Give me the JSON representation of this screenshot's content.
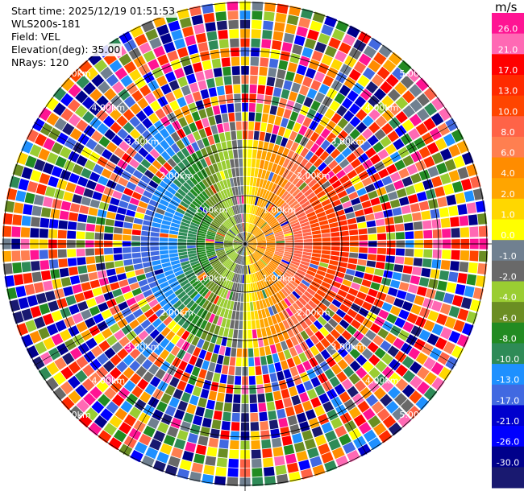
{
  "info": {
    "start_time": "Start time: 2025/12/19 01:51:53",
    "instrument": "WLS200s-181",
    "field": "Field: VEL",
    "elevation": "Elevation(deg): 35.00",
    "nrays": "NRays: 120"
  },
  "chart_data": {
    "type": "heatmap",
    "subtype": "polar-ppi",
    "field": "VEL",
    "unit": "m/s",
    "n_rays": 120,
    "elevation_deg": 35.0,
    "range_ring_labels": [
      "1.00km",
      "2.00km",
      "3.00km",
      "4.00km",
      "5.00km"
    ],
    "colorbar": {
      "ticks": [
        "26.0",
        "21.0",
        "17.0",
        "13.0",
        "10.0",
        "8.0",
        "6.0",
        "4.0",
        "2.0",
        "1.0",
        "0.0",
        "-1.0",
        "-2.0",
        "-4.0",
        "-6.0",
        "-8.0",
        "-10.0",
        "-13.0",
        "-17.0",
        "-21.0",
        "-26.0",
        "-30.0"
      ],
      "colors": [
        "#ff1493",
        "#ff69b4",
        "#ff0000",
        "#ff2a00",
        "#ff4500",
        "#ff6347",
        "#ff7f50",
        "#ff8c00",
        "#ffa500",
        "#ffd700",
        "#ffff00",
        "#708090",
        "#696969",
        "#9acd32",
        "#6b8e23",
        "#228b22",
        "#2e8b57",
        "#1e90ff",
        "#4169e1",
        "#0000cd",
        "#0000ff",
        "#00008b",
        "#191970"
      ]
    },
    "inner_pattern": "positive (warm) velocities on east side, negative (cool) velocities on west side within ~2 km; noisy random colors beyond"
  }
}
